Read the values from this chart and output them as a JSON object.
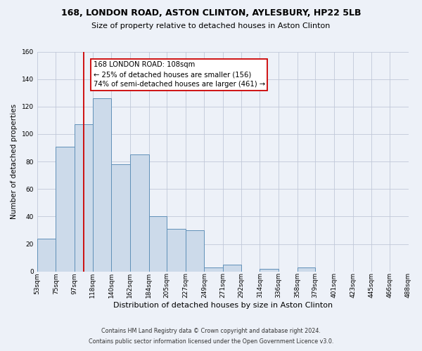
{
  "title_line1": "168, LONDON ROAD, ASTON CLINTON, AYLESBURY, HP22 5LB",
  "title_line2": "Size of property relative to detached houses in Aston Clinton",
  "xlabel": "Distribution of detached houses by size in Aston Clinton",
  "ylabel": "Number of detached properties",
  "footnote1": "Contains HM Land Registry data © Crown copyright and database right 2024.",
  "footnote2": "Contains public sector information licensed under the Open Government Licence v3.0.",
  "bin_edges": [
    53,
    75,
    97,
    118,
    140,
    162,
    184,
    205,
    227,
    249,
    271,
    292,
    314,
    336,
    358,
    379,
    401,
    423,
    445,
    466,
    488
  ],
  "bar_heights": [
    24,
    91,
    107,
    126,
    78,
    85,
    40,
    31,
    30,
    3,
    5,
    0,
    2,
    0,
    3,
    0,
    0,
    0,
    0,
    0
  ],
  "bar_color": "#ccdaea",
  "bar_edge_color": "#6090b8",
  "vline_x": 108,
  "vline_color": "#cc0000",
  "annotation_line1": "168 LONDON ROAD: 108sqm",
  "annotation_line2": "← 25% of detached houses are smaller (156)",
  "annotation_line3": "74% of semi-detached houses are larger (461) →",
  "annotation_box_color": "#cc0000",
  "annotation_box_fill": "#ffffff",
  "ylim": [
    0,
    160
  ],
  "yticks": [
    0,
    20,
    40,
    60,
    80,
    100,
    120,
    140,
    160
  ],
  "grid_color": "#c0c8d8",
  "bg_color": "#edf1f8",
  "title_fontsize": 9.0,
  "subtitle_fontsize": 8.0,
  "ylabel_fontsize": 7.5,
  "xlabel_fontsize": 8.0,
  "tick_fontsize": 6.5,
  "annot_fontsize": 7.2,
  "footnote_fontsize": 5.8
}
